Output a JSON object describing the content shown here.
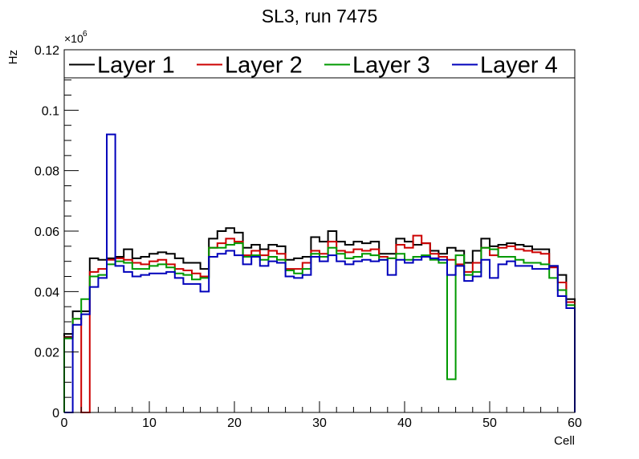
{
  "chart_data": {
    "type": "line",
    "style": "step-histogram",
    "title": "SL3, run 7475",
    "xlabel": "Cell",
    "ylabel": "Hz",
    "multiplier_label": "×10",
    "multiplier_exp": "6",
    "xlim": [
      0,
      60
    ],
    "ylim": [
      0,
      0.12
    ],
    "xticks": [
      0,
      10,
      20,
      30,
      40,
      50,
      60
    ],
    "yticks": [
      0,
      0.02,
      0.04,
      0.06,
      0.08,
      0.1,
      0.12
    ],
    "ytick_labels": [
      "0",
      "0.02",
      "0.04",
      "0.06",
      "0.08",
      "0.1",
      "0.12"
    ],
    "legend_position": "top",
    "series": [
      {
        "name": "Layer 1",
        "color": "#000000",
        "values": [
          0.026,
          0.0335,
          0.0335,
          0.051,
          0.0505,
          0.051,
          0.0515,
          0.054,
          0.051,
          0.0515,
          0.0525,
          0.053,
          0.0525,
          0.051,
          0.0495,
          0.0495,
          0.0475,
          0.0575,
          0.06,
          0.061,
          0.0595,
          0.0545,
          0.0555,
          0.054,
          0.0555,
          0.055,
          0.0505,
          0.051,
          0.0515,
          0.058,
          0.0565,
          0.06,
          0.0565,
          0.0555,
          0.0565,
          0.056,
          0.0565,
          0.0525,
          0.0525,
          0.0575,
          0.0565,
          0.0555,
          0.056,
          0.0535,
          0.0525,
          0.0545,
          0.0535,
          0.0495,
          0.0535,
          0.0575,
          0.055,
          0.0555,
          0.056,
          0.0555,
          0.055,
          0.054,
          0.054,
          0.0485,
          0.0455,
          0.0375
        ]
      },
      {
        "name": "Layer 2",
        "color": "#cc0000",
        "values": [
          0.025,
          0.031,
          0.0,
          0.0465,
          0.0475,
          0.0505,
          0.051,
          0.0505,
          0.0495,
          0.049,
          0.05,
          0.0505,
          0.049,
          0.0475,
          0.047,
          0.046,
          0.045,
          0.0545,
          0.056,
          0.0575,
          0.0565,
          0.052,
          0.0535,
          0.052,
          0.0535,
          0.0525,
          0.0475,
          0.0475,
          0.0495,
          0.0535,
          0.0525,
          0.0565,
          0.0535,
          0.053,
          0.054,
          0.0535,
          0.054,
          0.0515,
          0.051,
          0.0555,
          0.0545,
          0.0585,
          0.056,
          0.0525,
          0.0515,
          0.0505,
          0.049,
          0.0465,
          0.0495,
          0.0545,
          0.052,
          0.0545,
          0.055,
          0.054,
          0.0535,
          0.053,
          0.0525,
          0.048,
          0.043,
          0.0365
        ]
      },
      {
        "name": "Layer 3",
        "color": "#009900",
        "values": [
          0.0245,
          0.031,
          0.0375,
          0.045,
          0.0455,
          0.049,
          0.05,
          0.0495,
          0.0475,
          0.0475,
          0.0485,
          0.049,
          0.048,
          0.046,
          0.0455,
          0.044,
          0.0445,
          0.0545,
          0.0545,
          0.0555,
          0.056,
          0.0515,
          0.052,
          0.0505,
          0.0515,
          0.0505,
          0.047,
          0.046,
          0.0475,
          0.0525,
          0.0515,
          0.0545,
          0.0525,
          0.051,
          0.0515,
          0.0525,
          0.052,
          0.0505,
          0.051,
          0.0525,
          0.0505,
          0.0515,
          0.052,
          0.0505,
          0.0495,
          0.011,
          0.052,
          0.0455,
          0.0465,
          0.0545,
          0.054,
          0.0515,
          0.0515,
          0.0505,
          0.0495,
          0.0495,
          0.049,
          0.0445,
          0.0405,
          0.0355
        ]
      },
      {
        "name": "Layer 4",
        "color": "#0000bb",
        "values": [
          0.0,
          0.029,
          0.0325,
          0.0415,
          0.0445,
          0.092,
          0.0485,
          0.0465,
          0.045,
          0.0455,
          0.046,
          0.046,
          0.0465,
          0.0445,
          0.0425,
          0.0425,
          0.04,
          0.0515,
          0.0525,
          0.0535,
          0.052,
          0.049,
          0.0515,
          0.0485,
          0.05,
          0.0495,
          0.045,
          0.0445,
          0.0455,
          0.0515,
          0.05,
          0.052,
          0.05,
          0.049,
          0.05,
          0.0505,
          0.05,
          0.0505,
          0.0455,
          0.0505,
          0.0495,
          0.0505,
          0.0515,
          0.051,
          0.0505,
          0.0455,
          0.0485,
          0.0435,
          0.045,
          0.0505,
          0.0445,
          0.049,
          0.05,
          0.0485,
          0.0485,
          0.0475,
          0.0475,
          0.0485,
          0.0385,
          0.0345
        ]
      }
    ]
  }
}
